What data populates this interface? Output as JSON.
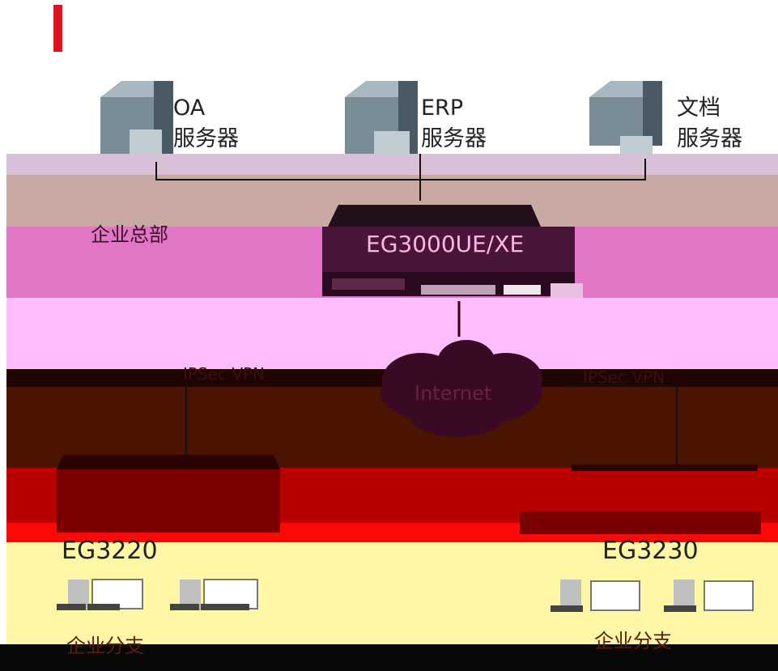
{
  "colors": {
    "accent_bar": "#d9141e",
    "band_top": "#ffffff",
    "band_lavender": "#c8b0c8",
    "band_mauve": "#c8a8a0",
    "band_magenta": "#e070c8",
    "band_pink": "#ffbcff",
    "band_darkbrown": "#3a0c00",
    "band_brown": "#4a1200",
    "band_red": "#b80000",
    "band_brightred": "#ff0000",
    "band_yellow": "#fff6a0",
    "band_bottom": "#080808"
  },
  "servers": [
    {
      "line1": "OA",
      "line2": "服务器"
    },
    {
      "line1": "ERP",
      "line2": "服务器"
    },
    {
      "line1": "文档",
      "line2": "服务器"
    }
  ],
  "headquarters_label": "企业总部",
  "core_device_label": "EG3000UE/XE",
  "cloud_label": "Internet",
  "vpn_label_left": "IPSec VPN",
  "vpn_label_right": "IPSec VPN",
  "branch_left": {
    "device": "EG3220",
    "site": "企业分支"
  },
  "branch_right": {
    "device": "EG3230",
    "site": "企业分支"
  },
  "icons": [
    "server-icon",
    "router-icon",
    "cloud-icon",
    "pc-icon",
    "laptop-icon"
  ]
}
